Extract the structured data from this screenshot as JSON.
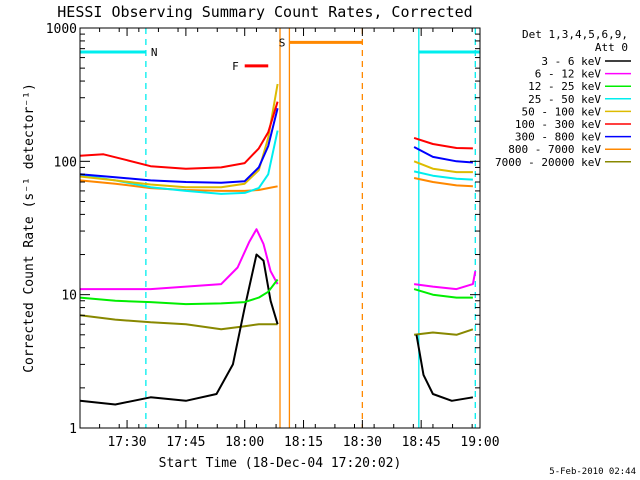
{
  "chart_data": {
    "type": "line",
    "title": "HESSI Observing Summary Count Rates, Corrected",
    "xlabel": "Start Time (18-Dec-04 17:20:02)",
    "ylabel": "Corrected Count Rate (s⁻¹ detector⁻¹)",
    "y_scale": "log",
    "ylim": [
      1,
      1000
    ],
    "xlim_minutes": [
      17.3,
      19.0
    ],
    "x_ticks": [
      {
        "t": 17.5,
        "label": "17:30"
      },
      {
        "t": 17.75,
        "label": "17:45"
      },
      {
        "t": 18.0,
        "label": "18:00"
      },
      {
        "t": 18.25,
        "label": "18:15"
      },
      {
        "t": 18.5,
        "label": "18:30"
      },
      {
        "t": 18.75,
        "label": "18:45"
      },
      {
        "t": 19.0,
        "label": "19:00"
      }
    ],
    "y_ticks": [
      {
        "v": 1,
        "label": "1"
      },
      {
        "v": 10,
        "label": "10"
      },
      {
        "v": 100,
        "label": "100"
      },
      {
        "v": 1000,
        "label": "1000"
      }
    ],
    "legend_header": [
      "Det 1,3,4,5,6,9,",
      "Att 0"
    ],
    "legend_placement": "right",
    "series": [
      {
        "name": "3 - 6 keV",
        "color": "#000000",
        "segments": [
          [
            [
              17.3,
              1.6
            ],
            [
              17.45,
              1.5
            ],
            [
              17.6,
              1.7
            ],
            [
              17.75,
              1.6
            ],
            [
              17.88,
              1.8
            ],
            [
              17.95,
              3
            ],
            [
              18.0,
              8
            ],
            [
              18.05,
              20
            ],
            [
              18.08,
              18
            ],
            [
              18.11,
              9
            ],
            [
              18.14,
              6
            ]
          ],
          [
            [
              18.73,
              5
            ],
            [
              18.76,
              2.5
            ],
            [
              18.8,
              1.8
            ],
            [
              18.88,
              1.6
            ],
            [
              18.97,
              1.7
            ]
          ]
        ]
      },
      {
        "name": "6 - 12 keV",
        "color": "#ff00ff",
        "segments": [
          [
            [
              17.3,
              11
            ],
            [
              17.45,
              11
            ],
            [
              17.6,
              11
            ],
            [
              17.75,
              11.5
            ],
            [
              17.9,
              12
            ],
            [
              17.97,
              16
            ],
            [
              18.02,
              25
            ],
            [
              18.05,
              31
            ],
            [
              18.08,
              24
            ],
            [
              18.11,
              15
            ],
            [
              18.14,
              12
            ]
          ],
          [
            [
              18.72,
              12
            ],
            [
              18.8,
              11.5
            ],
            [
              18.9,
              11
            ],
            [
              18.97,
              12
            ],
            [
              18.98,
              15
            ]
          ]
        ]
      },
      {
        "name": "12 - 25 keV",
        "color": "#00ee00",
        "segments": [
          [
            [
              17.3,
              9.5
            ],
            [
              17.45,
              9
            ],
            [
              17.6,
              8.8
            ],
            [
              17.75,
              8.5
            ],
            [
              17.9,
              8.6
            ],
            [
              18.0,
              8.8
            ],
            [
              18.06,
              9.5
            ],
            [
              18.1,
              10.5
            ],
            [
              18.14,
              13
            ]
          ],
          [
            [
              18.72,
              11
            ],
            [
              18.8,
              10
            ],
            [
              18.9,
              9.5
            ],
            [
              18.97,
              9.5
            ]
          ]
        ]
      },
      {
        "name": "25 - 50 keV",
        "color": "#00eeee",
        "segments": [
          [
            [
              17.3,
              79
            ],
            [
              17.45,
              72
            ],
            [
              17.6,
              64
            ],
            [
              17.75,
              60
            ],
            [
              17.9,
              57
            ],
            [
              18.0,
              58
            ],
            [
              18.06,
              63
            ],
            [
              18.1,
              80
            ],
            [
              18.14,
              170
            ]
          ],
          [
            [
              18.72,
              84
            ],
            [
              18.8,
              78
            ],
            [
              18.9,
              74
            ],
            [
              18.97,
              73
            ]
          ]
        ]
      },
      {
        "name": "50 - 100 keV",
        "color": "#ddbb00",
        "segments": [
          [
            [
              17.3,
              77
            ],
            [
              17.45,
              72
            ],
            [
              17.6,
              67
            ],
            [
              17.75,
              64
            ],
            [
              17.9,
              64
            ],
            [
              18.0,
              68
            ],
            [
              18.06,
              86
            ],
            [
              18.1,
              150
            ],
            [
              18.14,
              380
            ]
          ],
          [
            [
              18.72,
              100
            ],
            [
              18.8,
              88
            ],
            [
              18.9,
              83
            ],
            [
              18.97,
              83
            ]
          ]
        ]
      },
      {
        "name": "100 - 300 keV",
        "color": "#ff0000",
        "segments": [
          [
            [
              17.3,
              110
            ],
            [
              17.4,
              113
            ],
            [
              17.5,
              102
            ],
            [
              17.6,
              92
            ],
            [
              17.75,
              88
            ],
            [
              17.9,
              90
            ],
            [
              18.0,
              97
            ],
            [
              18.06,
              125
            ],
            [
              18.1,
              165
            ],
            [
              18.14,
              280
            ]
          ],
          [
            [
              18.72,
              150
            ],
            [
              18.8,
              135
            ],
            [
              18.9,
              126
            ],
            [
              18.97,
              125
            ]
          ]
        ]
      },
      {
        "name": "300 - 800 keV",
        "color": "#0000ff",
        "segments": [
          [
            [
              17.3,
              80
            ],
            [
              17.45,
              76
            ],
            [
              17.6,
              72
            ],
            [
              17.75,
              70
            ],
            [
              17.9,
              69
            ],
            [
              18.0,
              71
            ],
            [
              18.06,
              90
            ],
            [
              18.1,
              130
            ],
            [
              18.14,
              250
            ]
          ],
          [
            [
              18.72,
              128
            ],
            [
              18.8,
              108
            ],
            [
              18.9,
              100
            ],
            [
              18.97,
              98
            ]
          ]
        ]
      },
      {
        "name": "800 - 7000 keV",
        "color": "#ff8800",
        "segments": [
          [
            [
              17.3,
              72
            ],
            [
              17.45,
              68
            ],
            [
              17.6,
              63
            ],
            [
              17.75,
              61
            ],
            [
              17.9,
              60
            ],
            [
              18.0,
              60
            ],
            [
              18.06,
              61
            ],
            [
              18.1,
              63
            ],
            [
              18.14,
              65
            ]
          ],
          [
            [
              18.72,
              75
            ],
            [
              18.8,
              70
            ],
            [
              18.9,
              66
            ],
            [
              18.97,
              65
            ]
          ]
        ]
      },
      {
        "name": "7000 - 20000 keV",
        "color": "#888800",
        "segments": [
          [
            [
              17.3,
              7
            ],
            [
              17.45,
              6.5
            ],
            [
              17.6,
              6.2
            ],
            [
              17.75,
              6
            ],
            [
              17.9,
              5.5
            ],
            [
              18.0,
              5.8
            ],
            [
              18.06,
              6
            ],
            [
              18.1,
              6
            ],
            [
              18.14,
              6
            ]
          ],
          [
            [
              18.72,
              5
            ],
            [
              18.8,
              5.2
            ],
            [
              18.9,
              5
            ],
            [
              18.97,
              5.5
            ]
          ]
        ]
      }
    ],
    "flags": [
      {
        "label": "N",
        "color": "#00eeee",
        "segments": [
          [
            17.3,
            17.58
          ],
          [
            18.74,
            19.0
          ]
        ],
        "y": 660,
        "dashed_lines": [
          17.58,
          18.98
        ],
        "solid_lines": [
          18.74
        ]
      },
      {
        "label": "F",
        "color": "#ff0000",
        "segments": [
          [
            18.0,
            18.1
          ]
        ],
        "y": 520
      },
      {
        "label": "S",
        "color": "#ff8800",
        "segments": [
          [
            18.19,
            18.5
          ]
        ],
        "y": 780,
        "solid_lines": [
          18.15,
          18.19
        ],
        "dashed_lines": [
          18.5
        ]
      }
    ],
    "footer_date": "5-Feb-2010 02:44"
  }
}
